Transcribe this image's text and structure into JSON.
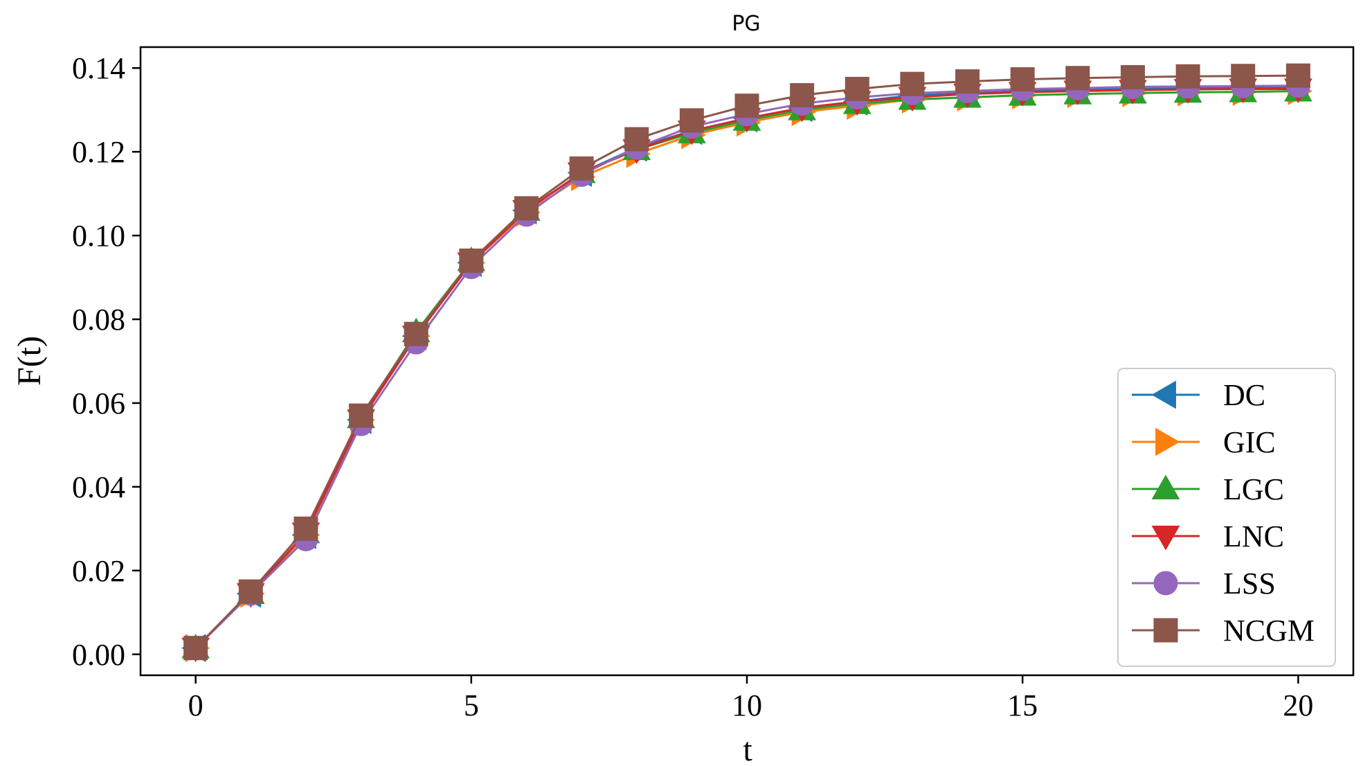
{
  "chart_data": {
    "type": "line",
    "title": "PG",
    "xlabel": "t",
    "ylabel": "F(t)",
    "xlim": [
      -1,
      21
    ],
    "ylim": [
      -0.005,
      0.145
    ],
    "xticks": [
      0,
      5,
      10,
      15,
      20
    ],
    "yticks": [
      0.0,
      0.02,
      0.04,
      0.06,
      0.08,
      0.1,
      0.12,
      0.14
    ],
    "grid": false,
    "legend_position": "lower-right",
    "x": [
      0,
      1,
      2,
      3,
      4,
      5,
      6,
      7,
      8,
      9,
      10,
      11,
      12,
      13,
      14,
      15,
      16,
      17,
      18,
      19,
      20
    ],
    "series": [
      {
        "name": "DC",
        "color": "#1f77b4",
        "marker": "triangle-left",
        "values": [
          0.0015,
          0.0145,
          0.0285,
          0.056,
          0.076,
          0.0935,
          0.106,
          0.115,
          0.121,
          0.125,
          0.128,
          0.1305,
          0.132,
          0.1335,
          0.134,
          0.1345,
          0.135,
          0.135,
          0.1352,
          0.1354,
          0.1355
        ]
      },
      {
        "name": "GIC",
        "color": "#ff7f0e",
        "marker": "triangle-right",
        "values": [
          0.0015,
          0.0145,
          0.0285,
          0.056,
          0.076,
          0.0935,
          0.1055,
          0.114,
          0.1195,
          0.124,
          0.127,
          0.1295,
          0.131,
          0.1325,
          0.133,
          0.1335,
          0.1338,
          0.134,
          0.1342,
          0.1343,
          0.1345
        ]
      },
      {
        "name": "LGC",
        "color": "#2ca02c",
        "marker": "triangle-up",
        "values": [
          0.0015,
          0.0145,
          0.029,
          0.0565,
          0.077,
          0.094,
          0.106,
          0.115,
          0.1205,
          0.1245,
          0.1275,
          0.13,
          0.1315,
          0.1325,
          0.133,
          0.1335,
          0.1338,
          0.134,
          0.1342,
          0.1343,
          0.1345
        ]
      },
      {
        "name": "LNC",
        "color": "#d62728",
        "marker": "triangle-down",
        "values": [
          0.0015,
          0.0145,
          0.029,
          0.056,
          0.076,
          0.0935,
          0.106,
          0.115,
          0.1205,
          0.125,
          0.128,
          0.1305,
          0.132,
          0.133,
          0.1338,
          0.1342,
          0.1345,
          0.1347,
          0.1349,
          0.135,
          0.135
        ]
      },
      {
        "name": "LSS",
        "color": "#9467bd",
        "marker": "circle",
        "values": [
          0.0015,
          0.0145,
          0.0275,
          0.055,
          0.0745,
          0.0925,
          0.105,
          0.1145,
          0.121,
          0.126,
          0.129,
          0.1315,
          0.133,
          0.134,
          0.1345,
          0.135,
          0.1352,
          0.1355,
          0.1356,
          0.1357,
          0.1358
        ]
      },
      {
        "name": "NCGM",
        "color": "#8c564b",
        "marker": "square",
        "values": [
          0.0015,
          0.015,
          0.03,
          0.057,
          0.0765,
          0.094,
          0.1065,
          0.116,
          0.123,
          0.1275,
          0.131,
          0.1335,
          0.135,
          0.1362,
          0.1368,
          0.1373,
          0.1376,
          0.1378,
          0.138,
          0.1381,
          0.1382
        ]
      }
    ]
  }
}
